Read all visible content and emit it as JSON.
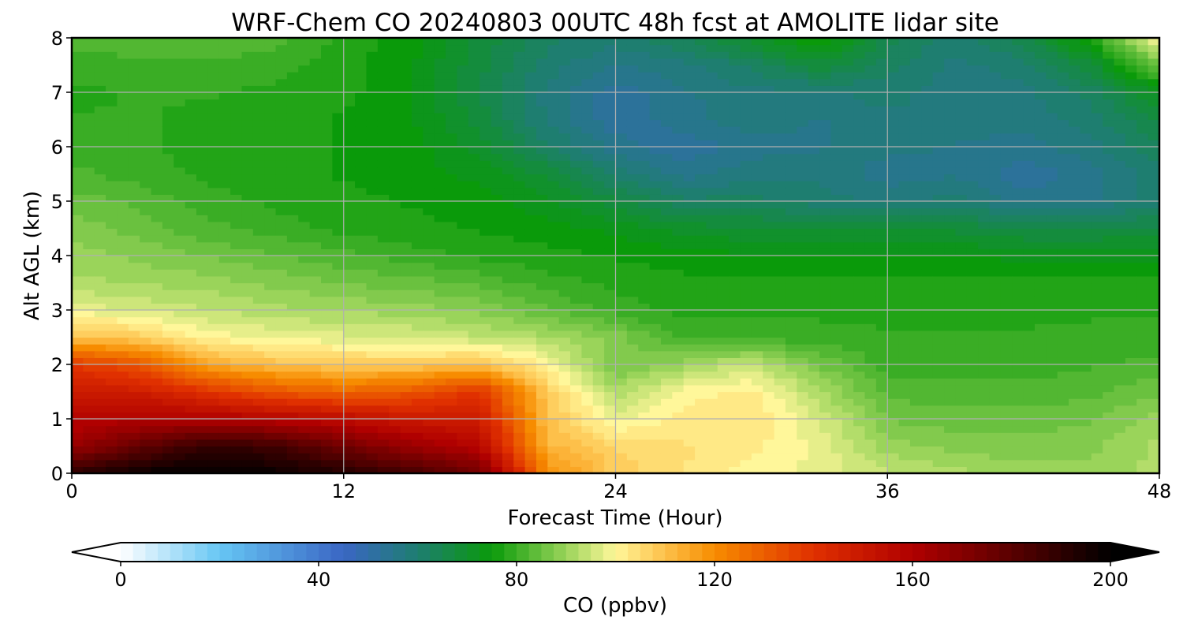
{
  "chart_data": {
    "type": "heatmap",
    "title": "WRF-Chem CO  20240803 00UTC 48h fcst at AMOLITE lidar site",
    "xlabel": "Forecast Time (Hour)",
    "ylabel": "Alt AGL (km)",
    "xlim": [
      0,
      48
    ],
    "ylim": [
      0,
      8
    ],
    "xticks": [
      0,
      12,
      24,
      36,
      48
    ],
    "yticks": [
      0,
      1,
      2,
      3,
      4,
      5,
      6,
      7,
      8
    ],
    "grid": true,
    "colorbar": {
      "label": "CO  (ppbv)",
      "range": [
        0,
        200
      ],
      "ticks": [
        0,
        40,
        80,
        120,
        160,
        200
      ],
      "extend": "both",
      "colors": {
        "v0": "#ffffff",
        "v20": "#66c6f4",
        "v45": "#3a66c4",
        "v60": "#1e7e70",
        "v75": "#0a9a0a",
        "v90": "#9ad45a",
        "v100": "#fff79a",
        "v110": "#fdc04a",
        "v120": "#f78c00",
        "v140": "#e03000",
        "v160": "#b00000",
        "v180": "#5a0000",
        "v200": "#000000"
      }
    },
    "times_h": [
      0,
      3,
      6,
      9,
      12,
      15,
      18,
      21,
      24,
      27,
      30,
      33,
      36,
      39,
      42,
      45,
      48
    ],
    "altitudes_km": [
      0,
      0.5,
      1,
      1.5,
      2,
      2.5,
      3,
      3.5,
      4,
      4.5,
      5,
      5.5,
      6,
      6.5,
      7,
      7.5,
      8
    ],
    "values_ppbv": [
      [
        190,
        198,
        200,
        198,
        192,
        185,
        175,
        120,
        108,
        104,
        100,
        98,
        94,
        92,
        90,
        90,
        92
      ],
      [
        165,
        178,
        190,
        186,
        175,
        165,
        158,
        112,
        106,
        104,
        102,
        98,
        90,
        88,
        87,
        88,
        92
      ],
      [
        158,
        160,
        160,
        158,
        155,
        150,
        148,
        110,
        98,
        102,
        104,
        96,
        86,
        85,
        85,
        86,
        90
      ],
      [
        150,
        148,
        140,
        132,
        128,
        132,
        140,
        108,
        92,
        100,
        102,
        92,
        83,
        82,
        82,
        83,
        86
      ],
      [
        138,
        132,
        115,
        110,
        108,
        108,
        110,
        100,
        86,
        90,
        95,
        86,
        80,
        80,
        80,
        81,
        82
      ],
      [
        110,
        108,
        100,
        98,
        97,
        96,
        94,
        92,
        88,
        80,
        80,
        80,
        79,
        79,
        79,
        80,
        80
      ],
      [
        98,
        96,
        94,
        92,
        91,
        90,
        88,
        84,
        80,
        78,
        78,
        78,
        78,
        78,
        78,
        78,
        78
      ],
      [
        92,
        91,
        90,
        88,
        86,
        85,
        83,
        80,
        78,
        77,
        77,
        77,
        77,
        77,
        77,
        77,
        77
      ],
      [
        90,
        88,
        86,
        84,
        82,
        80,
        78,
        77,
        76,
        75,
        74,
        74,
        74,
        74,
        73,
        73,
        73
      ],
      [
        88,
        85,
        82,
        80,
        78,
        77,
        76,
        75,
        73,
        70,
        69,
        68,
        68,
        68,
        66,
        66,
        67
      ],
      [
        85,
        83,
        80,
        78,
        77,
        76,
        75,
        72,
        67,
        62,
        62,
        60,
        58,
        60,
        55,
        56,
        60
      ],
      [
        82,
        80,
        78,
        77,
        76,
        75,
        73,
        68,
        60,
        55,
        58,
        58,
        55,
        56,
        52,
        55,
        60
      ],
      [
        80,
        79,
        78,
        77,
        76,
        75,
        70,
        62,
        55,
        52,
        55,
        56,
        57,
        56,
        55,
        58,
        63
      ],
      [
        79,
        79,
        78,
        77,
        76,
        74,
        68,
        58,
        52,
        55,
        58,
        56,
        58,
        58,
        57,
        60,
        67
      ],
      [
        78,
        79,
        79,
        78,
        77,
        74,
        66,
        58,
        52,
        56,
        58,
        58,
        60,
        57,
        58,
        62,
        72
      ],
      [
        80,
        80,
        81,
        80,
        77,
        74,
        67,
        60,
        56,
        58,
        62,
        68,
        62,
        58,
        60,
        68,
        85
      ],
      [
        82,
        84,
        83,
        82,
        78,
        75,
        68,
        62,
        60,
        64,
        70,
        78,
        65,
        60,
        65,
        78,
        100
      ]
    ]
  }
}
